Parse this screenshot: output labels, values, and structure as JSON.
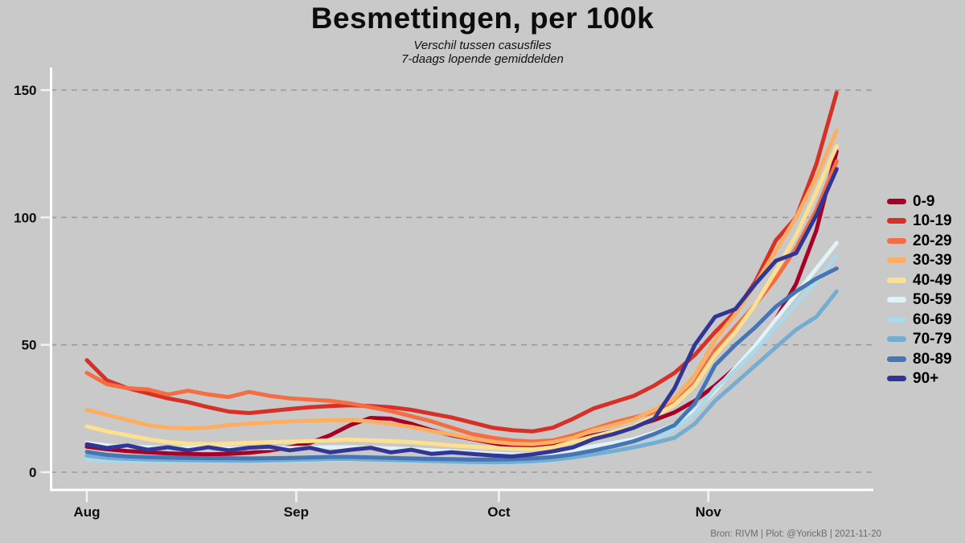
{
  "header": {
    "title": "Besmettingen, per 100k",
    "subtitle_line1": "Verschil tussen casusfiles",
    "subtitle_line2": "7-daags lopende gemiddelden"
  },
  "caption": "Bron: RIVM | Plot: @YorickB  |  2021-11-20",
  "colors": {
    "background": "#c9c9c9",
    "axis": "#ffffff",
    "tick": "#eef4f8",
    "grid": "#9a9a9a",
    "text": "#0d0d0d",
    "caption_text": "#6b6b6b"
  },
  "chart_data": {
    "type": "line",
    "title": "Besmettingen, per 100k",
    "xlabel": "",
    "ylabel": "",
    "x_unit": "days since Aug 1 (2021)",
    "x_range_days": [
      0,
      111
    ],
    "ylim": [
      0,
      158
    ],
    "grid": "horizontal dashed at y ticks",
    "legend_position": "right",
    "y_ticks": [
      0,
      50,
      100,
      150
    ],
    "x_ticks": [
      {
        "day": 0,
        "label": "Aug"
      },
      {
        "day": 31,
        "label": "Sep"
      },
      {
        "day": 61,
        "label": "Oct"
      },
      {
        "day": 92,
        "label": "Nov"
      }
    ],
    "days": [
      0,
      3,
      6,
      9,
      12,
      15,
      18,
      21,
      24,
      27,
      30,
      33,
      36,
      39,
      42,
      45,
      48,
      51,
      54,
      57,
      60,
      63,
      66,
      69,
      72,
      75,
      78,
      81,
      84,
      87,
      90,
      93,
      96,
      99,
      102,
      105,
      108,
      111
    ],
    "series": [
      {
        "name": "0-9",
        "color": "#a50026",
        "values": [
          10,
          9,
          8.3,
          7.8,
          7.4,
          7.2,
          7,
          7.2,
          7.6,
          8.5,
          9.8,
          11.5,
          14.5,
          18.5,
          21.3,
          21,
          19,
          16.5,
          14.5,
          13,
          11.5,
          10,
          9.5,
          10.5,
          12.5,
          14.5,
          16,
          18,
          20.5,
          23.5,
          28,
          34,
          41,
          50,
          60,
          74,
          95,
          126
        ]
      },
      {
        "name": "10-19",
        "color": "#d73027",
        "values": [
          44,
          36,
          33,
          31,
          29,
          27.5,
          25.5,
          23.8,
          23.2,
          24,
          24.8,
          25.5,
          26,
          26.3,
          26,
          25.5,
          24.5,
          23,
          21.5,
          19.5,
          17.5,
          16.5,
          16,
          17.5,
          21,
          25,
          27.5,
          30,
          34,
          39,
          46,
          55,
          63,
          75,
          91,
          100,
          121,
          149
        ]
      },
      {
        "name": "20-29",
        "color": "#f46d43",
        "values": [
          39,
          34.5,
          33,
          32.5,
          30.5,
          32,
          30.5,
          29.5,
          31.5,
          30,
          29,
          28.5,
          28,
          27,
          25.5,
          24,
          22,
          20,
          17.5,
          15,
          13.5,
          12.5,
          12,
          12.5,
          14.5,
          17,
          19.5,
          21.5,
          23.5,
          27,
          35,
          48,
          57,
          66,
          76,
          88,
          103,
          122
        ]
      },
      {
        "name": "30-39",
        "color": "#fdae61",
        "values": [
          24.5,
          22.5,
          20.5,
          18.5,
          17.5,
          17.2,
          17.5,
          18.5,
          19,
          19.5,
          20,
          20.2,
          20.4,
          20.5,
          20,
          19,
          17.8,
          16.2,
          14.8,
          13.2,
          12,
          11.2,
          11,
          11.8,
          13.5,
          16.5,
          18.5,
          20.7,
          24.5,
          29,
          38,
          52,
          62,
          74,
          87,
          100,
          116,
          134
        ]
      },
      {
        "name": "40-49",
        "color": "#fee090",
        "values": [
          18,
          16,
          14.5,
          13,
          11.8,
          11.2,
          11,
          11.2,
          11.5,
          11.8,
          12,
          12.2,
          12.5,
          12.8,
          12.5,
          12.2,
          11.8,
          11.2,
          10.5,
          10,
          9.6,
          9.2,
          9,
          9.8,
          12,
          14,
          16,
          18,
          22,
          26.5,
          34,
          46,
          55,
          66,
          79,
          93,
          110,
          128
        ]
      },
      {
        "name": "50-59",
        "color": "#e0f3f8",
        "values": [
          11.5,
          10.5,
          10,
          9.8,
          9.6,
          9.5,
          9.5,
          9.4,
          9.4,
          9.5,
          9.5,
          9.6,
          9.8,
          9.8,
          9.6,
          9.3,
          9,
          8.6,
          8.2,
          7.8,
          7.4,
          7,
          7,
          7.6,
          8.8,
          10.2,
          11.5,
          13,
          15.5,
          18.7,
          24,
          32,
          41,
          50,
          60,
          70,
          80,
          90
        ]
      },
      {
        "name": "60-69",
        "color": "#abd9e9",
        "values": [
          5,
          4.6,
          4.3,
          4.2,
          4.2,
          4.3,
          4.3,
          4.2,
          4.2,
          4.3,
          4.5,
          4.6,
          4.8,
          5,
          4.8,
          4.6,
          4.4,
          4.2,
          4,
          3.9,
          3.8,
          3.8,
          4,
          4.6,
          5.6,
          6.8,
          8,
          9.8,
          12.5,
          17,
          23,
          33,
          40,
          48,
          57,
          66,
          75,
          85
        ]
      },
      {
        "name": "70-79",
        "color": "#74add1",
        "values": [
          6.5,
          5.6,
          5.2,
          5,
          4.8,
          4.7,
          4.6,
          4.5,
          4.5,
          4.6,
          4.8,
          5,
          5.2,
          5.2,
          5,
          4.8,
          4.6,
          4.4,
          4.2,
          4,
          3.9,
          4,
          4.3,
          4.9,
          5.8,
          7,
          8.3,
          9.8,
          11.5,
          13.5,
          19,
          28,
          35,
          42,
          49,
          56,
          61,
          71
        ]
      },
      {
        "name": "80-89",
        "color": "#4575b4",
        "values": [
          8,
          6.8,
          6.2,
          5.9,
          5.7,
          5.6,
          5.5,
          5.5,
          5.4,
          5.5,
          5.6,
          5.8,
          6,
          6,
          5.8,
          5.6,
          5.4,
          5.2,
          5.1,
          5,
          5,
          5.1,
          5.4,
          6,
          7,
          8.5,
          10.2,
          12.2,
          15,
          18.5,
          27,
          42,
          50,
          57,
          65,
          71,
          76,
          80
        ]
      },
      {
        "name": "90+",
        "color": "#313695",
        "values": [
          11,
          9.5,
          10.5,
          8.8,
          9.8,
          8.6,
          9.8,
          8.6,
          9.6,
          10,
          8.6,
          9.6,
          7.8,
          8.8,
          9.6,
          7.8,
          8.8,
          7.2,
          7.8,
          7.2,
          6.6,
          6.2,
          7,
          8.2,
          9.8,
          13,
          15,
          17.5,
          21,
          33,
          50,
          61,
          64,
          74,
          83,
          86,
          101,
          119
        ]
      }
    ]
  }
}
